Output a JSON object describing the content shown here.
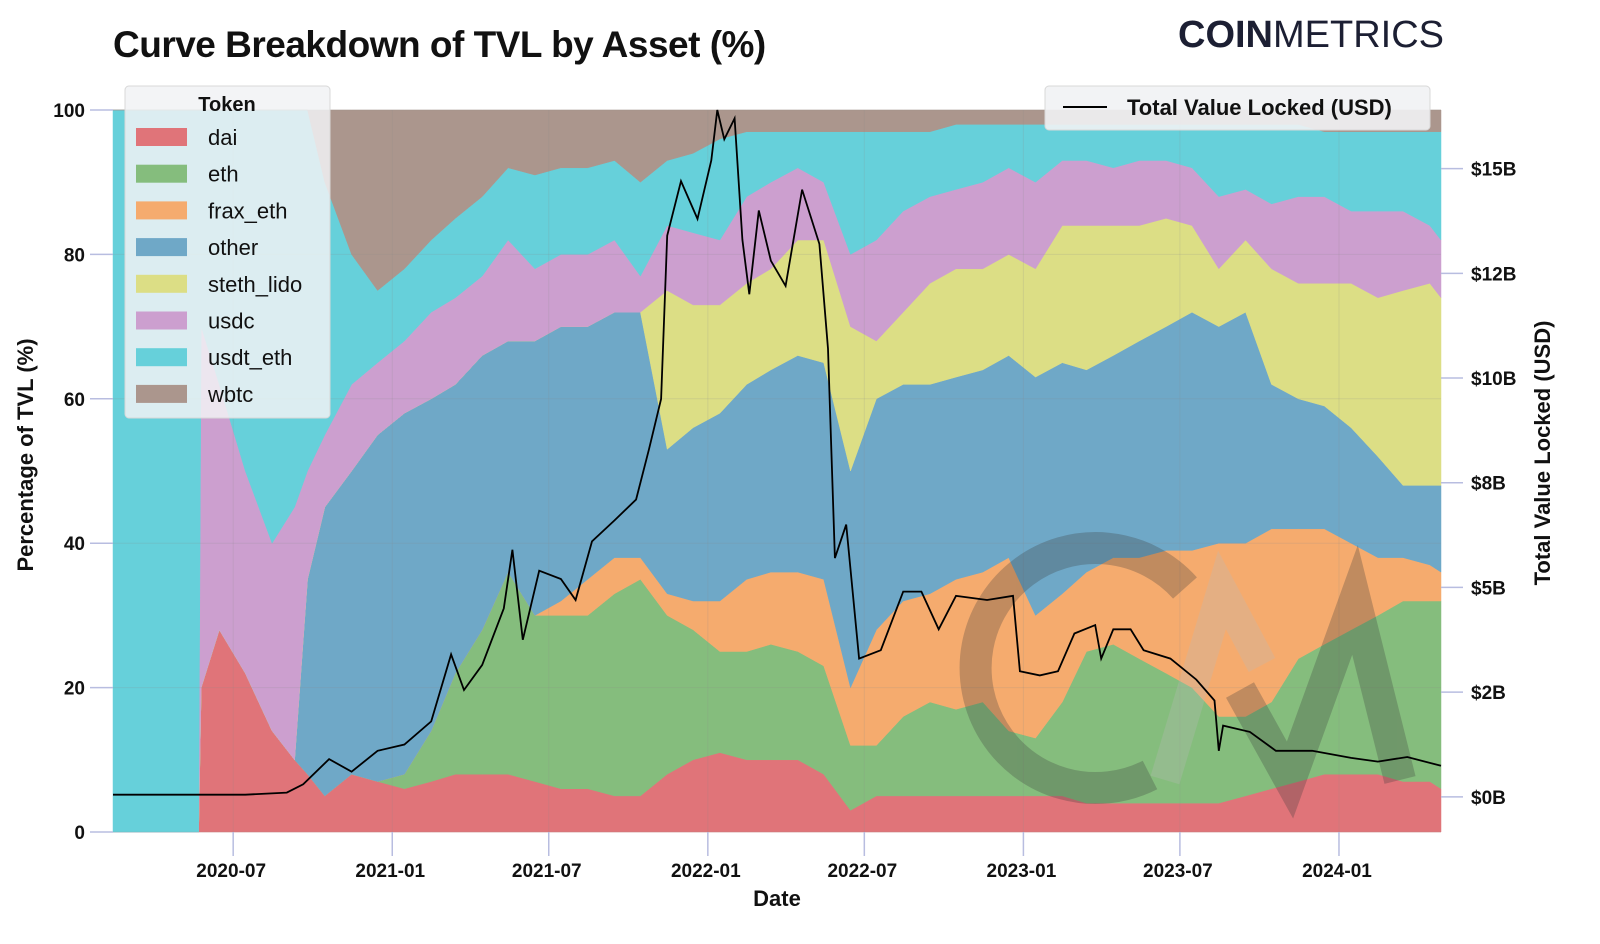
{
  "logo": {
    "bold": "COIN",
    "light": "METRICS"
  },
  "chart_data": {
    "type": "area",
    "stacked": true,
    "title": "Curve Breakdown of TVL by Asset (%)",
    "xlabel": "Date",
    "ylabel": "Percentage of TVL (%)",
    "y2label": "Total Value Locked (USD)",
    "xlim": [
      "2020-02-13",
      "2024-04-28"
    ],
    "ylim": [
      0,
      100
    ],
    "y2lim": [
      -0.84,
      16.4
    ],
    "x_ticks": [
      "2020-07-01",
      "2021-01-01",
      "2021-07-01",
      "2022-01-01",
      "2022-07-01",
      "2023-01-01",
      "2023-07-01",
      "2024-01-01"
    ],
    "x_tick_labels": [
      "2020-07",
      "2021-01",
      "2021-07",
      "2022-01",
      "2022-07",
      "2023-01",
      "2023-07",
      "2024-01"
    ],
    "y_ticks": [
      0,
      20,
      40,
      60,
      80,
      100
    ],
    "y_tick_labels": [
      "0",
      "20",
      "40",
      "60",
      "80",
      "100"
    ],
    "y2_ticks": [
      0,
      2.5,
      5,
      7.5,
      10,
      12.5,
      15
    ],
    "y2_tick_labels": [
      "$0B",
      "$2B",
      "$5B",
      "$8B",
      "$10B",
      "$12B",
      "$15B"
    ],
    "grid": true,
    "legend": {
      "title": "Token",
      "placement": "top-left"
    },
    "legend2": {
      "label": "Total Value Locked (USD)",
      "placement": "top-right"
    },
    "colors": {
      "dai": "#e07479",
      "eth": "#85bd7d",
      "frax_eth": "#f5ab6e",
      "other": "#6fa8c7",
      "steth_lido": "#dcde85",
      "usdc": "#cc9fcf",
      "usdt_eth": "#66d0da",
      "wbtc": "#ab968d",
      "tvl": "#000000"
    },
    "x": [
      "2020-02-13",
      "2020-05-22",
      "2020-05-25",
      "2020-06-15",
      "2020-07-15",
      "2020-08-15",
      "2020-09-10",
      "2020-09-25",
      "2020-10-15",
      "2020-11-15",
      "2020-12-15",
      "2021-01-15",
      "2021-02-15",
      "2021-03-15",
      "2021-04-15",
      "2021-05-15",
      "2021-06-15",
      "2021-07-15",
      "2021-08-15",
      "2021-09-15",
      "2021-10-15",
      "2021-11-15",
      "2021-12-15",
      "2022-01-15",
      "2022-02-15",
      "2022-03-15",
      "2022-04-15",
      "2022-05-15",
      "2022-06-15",
      "2022-07-15",
      "2022-08-15",
      "2022-09-15",
      "2022-10-15",
      "2022-11-15",
      "2022-12-15",
      "2023-01-15",
      "2023-02-15",
      "2023-03-15",
      "2023-04-15",
      "2023-05-15",
      "2023-06-15",
      "2023-07-15",
      "2023-08-15",
      "2023-09-15",
      "2023-10-15",
      "2023-11-15",
      "2023-12-15",
      "2024-01-15",
      "2024-02-15",
      "2024-03-15",
      "2024-04-15",
      "2024-04-28"
    ],
    "series": [
      {
        "name": "dai",
        "values": [
          0,
          0,
          20,
          28,
          22,
          14,
          10,
          8,
          5,
          8,
          7,
          6,
          7,
          8,
          8,
          8,
          7,
          6,
          6,
          5,
          5,
          8,
          10,
          11,
          10,
          10,
          10,
          8,
          3,
          5,
          5,
          5,
          5,
          5,
          5,
          5,
          5,
          4,
          4,
          4,
          4,
          4,
          4,
          5,
          6,
          7,
          8,
          8,
          8,
          7,
          7,
          6
        ]
      },
      {
        "name": "eth",
        "values": [
          0,
          0,
          0,
          0,
          0,
          0,
          0,
          0,
          0,
          0,
          0,
          2,
          7,
          14,
          20,
          28,
          23,
          24,
          24,
          28,
          30,
          22,
          18,
          14,
          15,
          16,
          15,
          15,
          9,
          7,
          11,
          13,
          12,
          13,
          9,
          8,
          13,
          21,
          22,
          20,
          18,
          16,
          12,
          11,
          12,
          17,
          18,
          20,
          22,
          25,
          25,
          26
        ]
      },
      {
        "name": "frax_eth",
        "values": [
          0,
          0,
          0,
          0,
          0,
          0,
          0,
          0,
          0,
          0,
          0,
          0,
          0,
          0,
          0,
          0,
          0,
          2,
          5,
          5,
          3,
          3,
          4,
          7,
          10,
          10,
          11,
          12,
          8,
          16,
          16,
          15,
          18,
          18,
          24,
          17,
          15,
          11,
          12,
          14,
          17,
          19,
          24,
          24,
          24,
          18,
          16,
          12,
          8,
          6,
          5,
          4
        ]
      },
      {
        "name": "other",
        "values": [
          0,
          0,
          0,
          0,
          0,
          0,
          0,
          27,
          40,
          42,
          48,
          50,
          46,
          40,
          38,
          32,
          38,
          38,
          35,
          34,
          34,
          20,
          24,
          26,
          27,
          28,
          30,
          30,
          30,
          32,
          30,
          29,
          28,
          28,
          28,
          33,
          32,
          28,
          28,
          30,
          31,
          33,
          30,
          32,
          20,
          18,
          17,
          16,
          14,
          10,
          11,
          12
        ]
      },
      {
        "name": "steth_lido",
        "values": [
          0,
          0,
          0,
          0,
          0,
          0,
          0,
          0,
          0,
          0,
          0,
          0,
          0,
          0,
          0,
          0,
          0,
          0,
          0,
          0,
          0,
          22,
          17,
          15,
          14,
          14,
          16,
          17,
          20,
          8,
          10,
          14,
          15,
          14,
          14,
          15,
          19,
          20,
          18,
          16,
          15,
          12,
          8,
          10,
          16,
          16,
          17,
          20,
          22,
          27,
          28,
          26
        ]
      },
      {
        "name": "usdc",
        "values": [
          0,
          0,
          50,
          34,
          28,
          26,
          35,
          15,
          10,
          12,
          10,
          10,
          12,
          12,
          11,
          14,
          10,
          10,
          10,
          10,
          5,
          9,
          10,
          9,
          12,
          12,
          10,
          8,
          10,
          14,
          14,
          12,
          11,
          12,
          12,
          12,
          9,
          9,
          8,
          9,
          8,
          8,
          10,
          7,
          9,
          12,
          12,
          10,
          12,
          11,
          8,
          8
        ]
      },
      {
        "name": "usdt_eth",
        "values": [
          100,
          100,
          30,
          38,
          50,
          60,
          55,
          50,
          35,
          18,
          10,
          10,
          10,
          11,
          11,
          10,
          13,
          12,
          12,
          11,
          13,
          9,
          11,
          14,
          9,
          7,
          5,
          7,
          17,
          15,
          11,
          9,
          9,
          8,
          6,
          8,
          5,
          5,
          6,
          5,
          5,
          6,
          10,
          9,
          11,
          10,
          9,
          11,
          11,
          11,
          13,
          15
        ]
      },
      {
        "name": "wbtc",
        "values": [
          0,
          0,
          0,
          0,
          0,
          0,
          0,
          0,
          10,
          20,
          25,
          22,
          18,
          15,
          12,
          8,
          9,
          8,
          8,
          7,
          10,
          7,
          6,
          4,
          3,
          3,
          3,
          3,
          3,
          3,
          3,
          3,
          2,
          2,
          2,
          2,
          2,
          2,
          2,
          2,
          2,
          2,
          2,
          2,
          2,
          2,
          3,
          3,
          3,
          3,
          3,
          3
        ]
      }
    ],
    "tvl_line": {
      "name": "Total Value Locked (USD)",
      "unit": "billion USD",
      "x": [
        "2020-02-13",
        "2020-07-15",
        "2020-09-01",
        "2020-09-20",
        "2020-10-20",
        "2020-11-15",
        "2020-12-15",
        "2021-01-15",
        "2021-02-15",
        "2021-03-10",
        "2021-03-25",
        "2021-04-15",
        "2021-05-10",
        "2021-05-20",
        "2021-06-01",
        "2021-06-20",
        "2021-07-15",
        "2021-08-01",
        "2021-08-20",
        "2021-09-15",
        "2021-10-10",
        "2021-10-25",
        "2021-11-08",
        "2021-11-15",
        "2021-12-01",
        "2021-12-20",
        "2022-01-05",
        "2022-01-12",
        "2022-01-20",
        "2022-02-01",
        "2022-02-10",
        "2022-02-18",
        "2022-03-01",
        "2022-03-15",
        "2022-04-01",
        "2022-04-20",
        "2022-05-10",
        "2022-05-20",
        "2022-05-28",
        "2022-06-10",
        "2022-06-25",
        "2022-07-20",
        "2022-08-15",
        "2022-09-05",
        "2022-09-25",
        "2022-10-15",
        "2022-11-20",
        "2022-12-20",
        "2022-12-28",
        "2023-01-20",
        "2023-02-10",
        "2023-03-01",
        "2023-03-25",
        "2023-04-01",
        "2023-04-15",
        "2023-05-05",
        "2023-05-20",
        "2023-06-20",
        "2023-07-20",
        "2023-08-10",
        "2023-08-15",
        "2023-08-20",
        "2023-09-20",
        "2023-10-20",
        "2023-12-01",
        "2024-01-15",
        "2024-02-15",
        "2024-03-20",
        "2024-04-28"
      ],
      "values": [
        0.05,
        0.05,
        0.1,
        0.3,
        0.9,
        0.6,
        1.1,
        1.25,
        1.8,
        3.4,
        2.55,
        3.15,
        4.5,
        5.9,
        3.75,
        5.4,
        5.2,
        4.7,
        6.1,
        6.6,
        7.1,
        8.3,
        9.5,
        13.4,
        14.7,
        13.8,
        15.2,
        16.4,
        15.7,
        16.2,
        13.3,
        12.0,
        14.0,
        12.8,
        12.2,
        14.5,
        13.2,
        10.7,
        5.7,
        6.5,
        3.3,
        3.5,
        4.9,
        4.9,
        4.0,
        4.8,
        4.7,
        4.8,
        3.0,
        2.9,
        3.0,
        3.9,
        4.1,
        3.3,
        4.0,
        4.0,
        3.5,
        3.3,
        2.8,
        2.3,
        1.1,
        1.7,
        1.55,
        1.1,
        1.1,
        0.93,
        0.84,
        0.95,
        0.74
      ]
    }
  }
}
